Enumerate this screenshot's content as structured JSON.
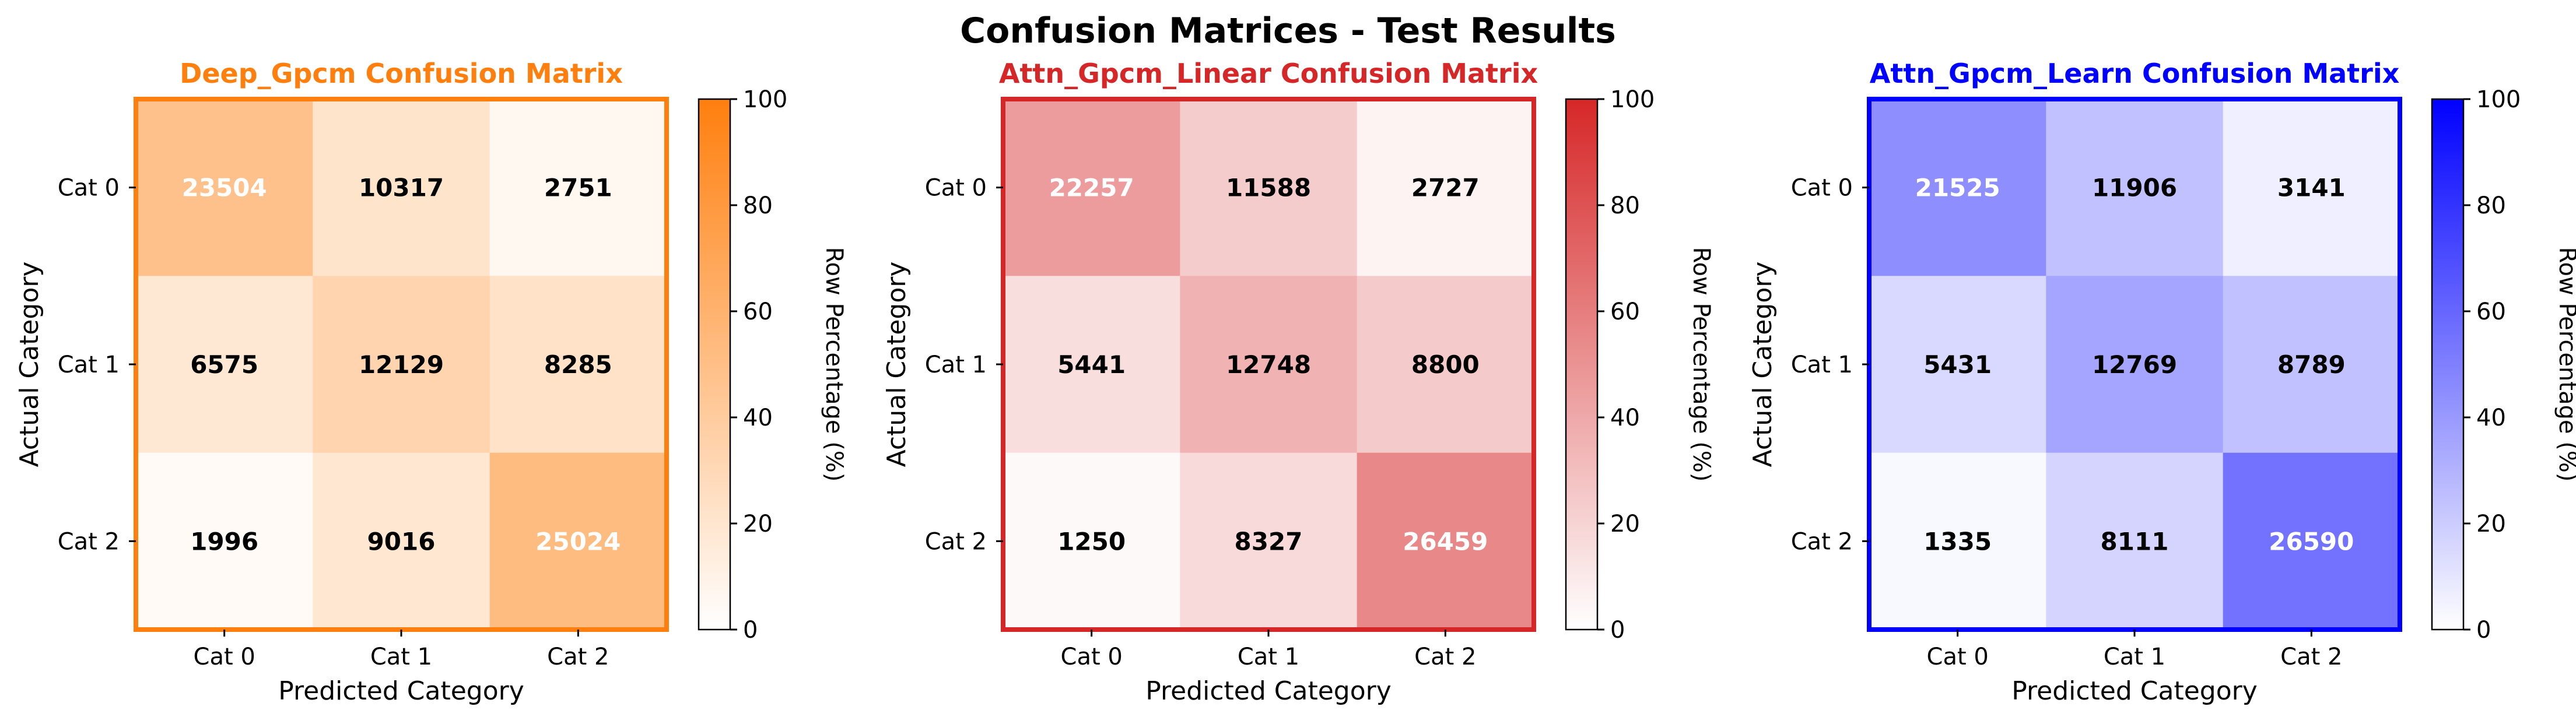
{
  "figure": {
    "title": "Confusion Matrices - Test Results"
  },
  "chart_data": [
    {
      "type": "heatmap",
      "title": "Deep_Gpcm Confusion Matrix",
      "title_color": "#ff7f0e",
      "xlabel": "Predicted Category",
      "ylabel": "Actual Category",
      "x_categories": [
        "Cat 0",
        "Cat 1",
        "Cat 2"
      ],
      "y_categories": [
        "Cat 0",
        "Cat 1",
        "Cat 2"
      ],
      "values": [
        [
          23504,
          10317,
          2751
        ],
        [
          6575,
          12129,
          8285
        ],
        [
          1996,
          9016,
          25024
        ]
      ],
      "colorbar": {
        "label": "Row Percentage (%)",
        "range": [
          0,
          100
        ],
        "ticks": [
          "0",
          "20",
          "40",
          "60",
          "80",
          "100"
        ]
      }
    },
    {
      "type": "heatmap",
      "title": "Attn_Gpcm_Linear Confusion Matrix",
      "title_color": "#d62728",
      "xlabel": "Predicted Category",
      "ylabel": "Actual Category",
      "x_categories": [
        "Cat 0",
        "Cat 1",
        "Cat 2"
      ],
      "y_categories": [
        "Cat 0",
        "Cat 1",
        "Cat 2"
      ],
      "values": [
        [
          22257,
          11588,
          2727
        ],
        [
          5441,
          12748,
          8800
        ],
        [
          1250,
          8327,
          26459
        ]
      ],
      "colorbar": {
        "label": "Row Percentage (%)",
        "range": [
          0,
          100
        ],
        "ticks": [
          "0",
          "20",
          "40",
          "60",
          "80",
          "100"
        ]
      }
    },
    {
      "type": "heatmap",
      "title": "Attn_Gpcm_Learn Confusion Matrix",
      "title_color": "#0000ff",
      "xlabel": "Predicted Category",
      "ylabel": "Actual Category",
      "x_categories": [
        "Cat 0",
        "Cat 1",
        "Cat 2"
      ],
      "y_categories": [
        "Cat 0",
        "Cat 1",
        "Cat 2"
      ],
      "values": [
        [
          21525,
          11906,
          3141
        ],
        [
          5431,
          12769,
          8789
        ],
        [
          1335,
          8111,
          26590
        ]
      ],
      "colorbar": {
        "label": "Row Percentage (%)",
        "range": [
          0,
          100
        ],
        "ticks": [
          "0",
          "20",
          "40",
          "60",
          "80",
          "100"
        ]
      }
    }
  ]
}
